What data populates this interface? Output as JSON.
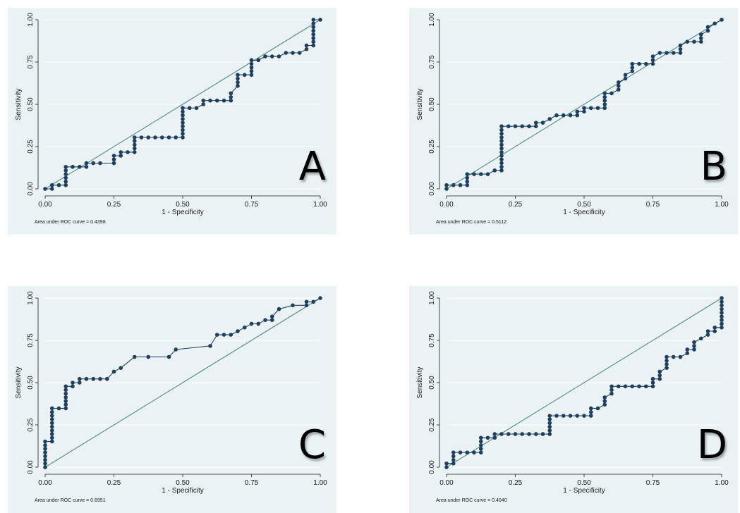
{
  "chart_data": [
    {
      "type": "line",
      "letter": "A",
      "xlabel": "1 - Specificity",
      "ylabel": "Sensitivity",
      "xlim": [
        0,
        1
      ],
      "ylim": [
        0,
        1
      ],
      "xticks": [
        "0.00",
        "0.25",
        "0.50",
        "0.75",
        "1.00"
      ],
      "yticks": [
        "0.00",
        "0.25",
        "0.50",
        "0.75",
        "1.00"
      ],
      "auc_text": "Area under ROC curve = 0.4398",
      "grid": true,
      "colors": {
        "curve": "#1f3f5f",
        "marker": "#1f3f5f",
        "reference": "#4f8c84",
        "grid": "#ffffff",
        "background": "#eaf2f3"
      },
      "roc": [
        [
          0,
          0
        ],
        [
          0.025,
          0
        ],
        [
          0.025,
          0.022
        ],
        [
          0.05,
          0.022
        ],
        [
          0.075,
          0.022
        ],
        [
          0.075,
          0.043
        ],
        [
          0.075,
          0.065
        ],
        [
          0.075,
          0.087
        ],
        [
          0.075,
          0.109
        ],
        [
          0.075,
          0.13
        ],
        [
          0.1,
          0.13
        ],
        [
          0.125,
          0.13
        ],
        [
          0.15,
          0.13
        ],
        [
          0.15,
          0.152
        ],
        [
          0.175,
          0.152
        ],
        [
          0.2,
          0.152
        ],
        [
          0.25,
          0.152
        ],
        [
          0.25,
          0.174
        ],
        [
          0.25,
          0.196
        ],
        [
          0.275,
          0.196
        ],
        [
          0.275,
          0.217
        ],
        [
          0.3,
          0.217
        ],
        [
          0.325,
          0.217
        ],
        [
          0.325,
          0.239
        ],
        [
          0.325,
          0.261
        ],
        [
          0.325,
          0.283
        ],
        [
          0.325,
          0.304
        ],
        [
          0.35,
          0.304
        ],
        [
          0.375,
          0.304
        ],
        [
          0.4,
          0.304
        ],
        [
          0.425,
          0.304
        ],
        [
          0.45,
          0.304
        ],
        [
          0.475,
          0.304
        ],
        [
          0.5,
          0.304
        ],
        [
          0.5,
          0.326
        ],
        [
          0.5,
          0.348
        ],
        [
          0.5,
          0.37
        ],
        [
          0.5,
          0.391
        ],
        [
          0.5,
          0.413
        ],
        [
          0.5,
          0.435
        ],
        [
          0.5,
          0.457
        ],
        [
          0.5,
          0.478
        ],
        [
          0.525,
          0.478
        ],
        [
          0.55,
          0.478
        ],
        [
          0.575,
          0.5
        ],
        [
          0.575,
          0.522
        ],
        [
          0.6,
          0.522
        ],
        [
          0.625,
          0.522
        ],
        [
          0.65,
          0.522
        ],
        [
          0.675,
          0.522
        ],
        [
          0.675,
          0.543
        ],
        [
          0.675,
          0.565
        ],
        [
          0.7,
          0.609
        ],
        [
          0.7,
          0.63
        ],
        [
          0.7,
          0.652
        ],
        [
          0.7,
          0.674
        ],
        [
          0.725,
          0.674
        ],
        [
          0.75,
          0.674
        ],
        [
          0.75,
          0.696
        ],
        [
          0.75,
          0.717
        ],
        [
          0.75,
          0.739
        ],
        [
          0.75,
          0.761
        ],
        [
          0.775,
          0.761
        ],
        [
          0.8,
          0.783
        ],
        [
          0.825,
          0.783
        ],
        [
          0.85,
          0.783
        ],
        [
          0.875,
          0.804
        ],
        [
          0.9,
          0.804
        ],
        [
          0.925,
          0.804
        ],
        [
          0.95,
          0.826
        ],
        [
          0.95,
          0.848
        ],
        [
          0.975,
          0.848
        ],
        [
          0.975,
          0.87
        ],
        [
          0.975,
          0.891
        ],
        [
          0.975,
          0.913
        ],
        [
          0.975,
          0.935
        ],
        [
          0.975,
          0.957
        ],
        [
          0.975,
          0.978
        ],
        [
          0.975,
          1
        ],
        [
          1,
          1
        ]
      ]
    },
    {
      "type": "line",
      "letter": "B",
      "xlabel": "1 - Specificity",
      "ylabel": "Sensitivity",
      "xlim": [
        0,
        1
      ],
      "ylim": [
        0,
        1
      ],
      "xticks": [
        "0.00",
        "0.25",
        "0.50",
        "0.75",
        "1.00"
      ],
      "yticks": [
        "0.00",
        "0.25",
        "0.50",
        "0.75",
        "1.00"
      ],
      "auc_text": "Area under ROC curve = 0.5112",
      "grid": true,
      "colors": {
        "curve": "#1f3f5f",
        "marker": "#1f3f5f",
        "reference": "#4f8c84",
        "grid": "#ffffff",
        "background": "#eaf2f3"
      },
      "roc": [
        [
          0,
          0
        ],
        [
          0,
          0.022
        ],
        [
          0.025,
          0.022
        ],
        [
          0.05,
          0.022
        ],
        [
          0.075,
          0.022
        ],
        [
          0.075,
          0.043
        ],
        [
          0.075,
          0.065
        ],
        [
          0.075,
          0.087
        ],
        [
          0.1,
          0.087
        ],
        [
          0.125,
          0.087
        ],
        [
          0.15,
          0.087
        ],
        [
          0.175,
          0.109
        ],
        [
          0.2,
          0.109
        ],
        [
          0.2,
          0.13
        ],
        [
          0.2,
          0.152
        ],
        [
          0.2,
          0.174
        ],
        [
          0.2,
          0.196
        ],
        [
          0.2,
          0.217
        ],
        [
          0.2,
          0.239
        ],
        [
          0.2,
          0.261
        ],
        [
          0.2,
          0.283
        ],
        [
          0.2,
          0.304
        ],
        [
          0.2,
          0.326
        ],
        [
          0.2,
          0.348
        ],
        [
          0.2,
          0.37
        ],
        [
          0.225,
          0.37
        ],
        [
          0.25,
          0.37
        ],
        [
          0.275,
          0.37
        ],
        [
          0.3,
          0.37
        ],
        [
          0.325,
          0.37
        ],
        [
          0.325,
          0.391
        ],
        [
          0.35,
          0.391
        ],
        [
          0.375,
          0.413
        ],
        [
          0.4,
          0.435
        ],
        [
          0.425,
          0.435
        ],
        [
          0.45,
          0.435
        ],
        [
          0.475,
          0.435
        ],
        [
          0.475,
          0.457
        ],
        [
          0.5,
          0.457
        ],
        [
          0.5,
          0.478
        ],
        [
          0.525,
          0.478
        ],
        [
          0.55,
          0.478
        ],
        [
          0.575,
          0.478
        ],
        [
          0.575,
          0.5
        ],
        [
          0.575,
          0.522
        ],
        [
          0.575,
          0.543
        ],
        [
          0.575,
          0.565
        ],
        [
          0.6,
          0.565
        ],
        [
          0.625,
          0.587
        ],
        [
          0.625,
          0.609
        ],
        [
          0.625,
          0.63
        ],
        [
          0.65,
          0.652
        ],
        [
          0.65,
          0.674
        ],
        [
          0.675,
          0.696
        ],
        [
          0.675,
          0.717
        ],
        [
          0.675,
          0.739
        ],
        [
          0.7,
          0.739
        ],
        [
          0.725,
          0.739
        ],
        [
          0.75,
          0.739
        ],
        [
          0.75,
          0.761
        ],
        [
          0.75,
          0.783
        ],
        [
          0.775,
          0.804
        ],
        [
          0.8,
          0.804
        ],
        [
          0.825,
          0.804
        ],
        [
          0.85,
          0.804
        ],
        [
          0.85,
          0.826
        ],
        [
          0.85,
          0.848
        ],
        [
          0.875,
          0.87
        ],
        [
          0.9,
          0.87
        ],
        [
          0.925,
          0.87
        ],
        [
          0.925,
          0.891
        ],
        [
          0.925,
          0.913
        ],
        [
          0.95,
          0.935
        ],
        [
          0.95,
          0.957
        ],
        [
          0.975,
          0.978
        ],
        [
          1,
          1
        ]
      ]
    },
    {
      "type": "line",
      "letter": "C",
      "xlabel": "1 - Specificity",
      "ylabel": "Sensitivity",
      "xlim": [
        0,
        1
      ],
      "ylim": [
        0,
        1
      ],
      "xticks": [
        "0.00",
        "0.25",
        "0.50",
        "0.75",
        "1.00"
      ],
      "yticks": [
        "0.00",
        "0.25",
        "0.50",
        "0.75",
        "1.00"
      ],
      "auc_text": "Area under ROC curve = 0.6951",
      "grid": true,
      "colors": {
        "curve": "#1f3f5f",
        "marker": "#1f3f5f",
        "reference": "#4f8c84",
        "grid": "#ffffff",
        "background": "#eaf2f3"
      },
      "roc": [
        [
          0,
          0
        ],
        [
          0,
          0.022
        ],
        [
          0,
          0.043
        ],
        [
          0,
          0.065
        ],
        [
          0,
          0.087
        ],
        [
          0,
          0.109
        ],
        [
          0,
          0.13
        ],
        [
          0,
          0.152
        ],
        [
          0.025,
          0.152
        ],
        [
          0.025,
          0.174
        ],
        [
          0.025,
          0.196
        ],
        [
          0.025,
          0.217
        ],
        [
          0.025,
          0.239
        ],
        [
          0.025,
          0.261
        ],
        [
          0.025,
          0.283
        ],
        [
          0.025,
          0.304
        ],
        [
          0.025,
          0.326
        ],
        [
          0.025,
          0.348
        ],
        [
          0.05,
          0.348
        ],
        [
          0.075,
          0.348
        ],
        [
          0.075,
          0.37
        ],
        [
          0.075,
          0.391
        ],
        [
          0.075,
          0.413
        ],
        [
          0.075,
          0.435
        ],
        [
          0.075,
          0.457
        ],
        [
          0.075,
          0.478
        ],
        [
          0.1,
          0.478
        ],
        [
          0.1,
          0.5
        ],
        [
          0.125,
          0.5
        ],
        [
          0.125,
          0.522
        ],
        [
          0.15,
          0.522
        ],
        [
          0.175,
          0.522
        ],
        [
          0.2,
          0.522
        ],
        [
          0.225,
          0.522
        ],
        [
          0.25,
          0.565
        ],
        [
          0.275,
          0.587
        ],
        [
          0.325,
          0.652
        ],
        [
          0.375,
          0.652
        ],
        [
          0.45,
          0.652
        ],
        [
          0.475,
          0.696
        ],
        [
          0.6,
          0.717
        ],
        [
          0.625,
          0.783
        ],
        [
          0.65,
          0.783
        ],
        [
          0.675,
          0.783
        ],
        [
          0.7,
          0.804
        ],
        [
          0.725,
          0.826
        ],
        [
          0.75,
          0.848
        ],
        [
          0.775,
          0.848
        ],
        [
          0.8,
          0.87
        ],
        [
          0.825,
          0.87
        ],
        [
          0.825,
          0.891
        ],
        [
          0.85,
          0.935
        ],
        [
          0.9,
          0.957
        ],
        [
          0.95,
          0.957
        ],
        [
          0.95,
          0.978
        ],
        [
          0.975,
          0.978
        ],
        [
          1,
          1
        ]
      ]
    },
    {
      "type": "line",
      "letter": "D",
      "xlabel": "1 - Specificity",
      "ylabel": "Sensitivity",
      "xlim": [
        0,
        1
      ],
      "ylim": [
        0,
        1
      ],
      "xticks": [
        "0.00",
        "0.25",
        "0.50",
        "0.75",
        "1.00"
      ],
      "yticks": [
        "0.00",
        "0.25",
        "0.50",
        "0.75",
        "1.00"
      ],
      "auc_text": "Area under ROC curve = 0.4040",
      "grid": true,
      "colors": {
        "curve": "#1f3f5f",
        "marker": "#1f3f5f",
        "reference": "#4f8c84",
        "grid": "#ffffff",
        "background": "#eaf2f3"
      },
      "roc": [
        [
          0,
          0
        ],
        [
          0,
          0.022
        ],
        [
          0.025,
          0.022
        ],
        [
          0.025,
          0.043
        ],
        [
          0.025,
          0.065
        ],
        [
          0.025,
          0.087
        ],
        [
          0.05,
          0.087
        ],
        [
          0.075,
          0.087
        ],
        [
          0.1,
          0.087
        ],
        [
          0.125,
          0.087
        ],
        [
          0.125,
          0.109
        ],
        [
          0.125,
          0.13
        ],
        [
          0.125,
          0.152
        ],
        [
          0.125,
          0.174
        ],
        [
          0.15,
          0.174
        ],
        [
          0.175,
          0.174
        ],
        [
          0.175,
          0.196
        ],
        [
          0.2,
          0.196
        ],
        [
          0.225,
          0.196
        ],
        [
          0.25,
          0.196
        ],
        [
          0.275,
          0.196
        ],
        [
          0.3,
          0.196
        ],
        [
          0.325,
          0.196
        ],
        [
          0.35,
          0.196
        ],
        [
          0.375,
          0.196
        ],
        [
          0.375,
          0.217
        ],
        [
          0.375,
          0.239
        ],
        [
          0.375,
          0.261
        ],
        [
          0.375,
          0.283
        ],
        [
          0.375,
          0.304
        ],
        [
          0.4,
          0.304
        ],
        [
          0.425,
          0.304
        ],
        [
          0.45,
          0.304
        ],
        [
          0.475,
          0.304
        ],
        [
          0.5,
          0.304
        ],
        [
          0.525,
          0.304
        ],
        [
          0.525,
          0.326
        ],
        [
          0.525,
          0.348
        ],
        [
          0.55,
          0.348
        ],
        [
          0.575,
          0.37
        ],
        [
          0.575,
          0.391
        ],
        [
          0.575,
          0.413
        ],
        [
          0.6,
          0.435
        ],
        [
          0.6,
          0.457
        ],
        [
          0.6,
          0.478
        ],
        [
          0.625,
          0.478
        ],
        [
          0.65,
          0.478
        ],
        [
          0.675,
          0.478
        ],
        [
          0.7,
          0.478
        ],
        [
          0.725,
          0.478
        ],
        [
          0.75,
          0.478
        ],
        [
          0.75,
          0.5
        ],
        [
          0.75,
          0.522
        ],
        [
          0.775,
          0.522
        ],
        [
          0.775,
          0.543
        ],
        [
          0.775,
          0.565
        ],
        [
          0.8,
          0.587
        ],
        [
          0.8,
          0.609
        ],
        [
          0.8,
          0.63
        ],
        [
          0.8,
          0.652
        ],
        [
          0.825,
          0.652
        ],
        [
          0.85,
          0.652
        ],
        [
          0.875,
          0.674
        ],
        [
          0.875,
          0.696
        ],
        [
          0.9,
          0.696
        ],
        [
          0.9,
          0.717
        ],
        [
          0.9,
          0.739
        ],
        [
          0.925,
          0.761
        ],
        [
          0.95,
          0.783
        ],
        [
          0.95,
          0.804
        ],
        [
          0.975,
          0.804
        ],
        [
          0.975,
          0.826
        ],
        [
          1,
          0.826
        ],
        [
          1,
          0.848
        ],
        [
          1,
          0.87
        ],
        [
          1,
          0.891
        ],
        [
          1,
          0.913
        ],
        [
          1,
          0.935
        ],
        [
          1,
          0.957
        ],
        [
          1,
          0.978
        ],
        [
          1,
          1
        ]
      ]
    }
  ]
}
